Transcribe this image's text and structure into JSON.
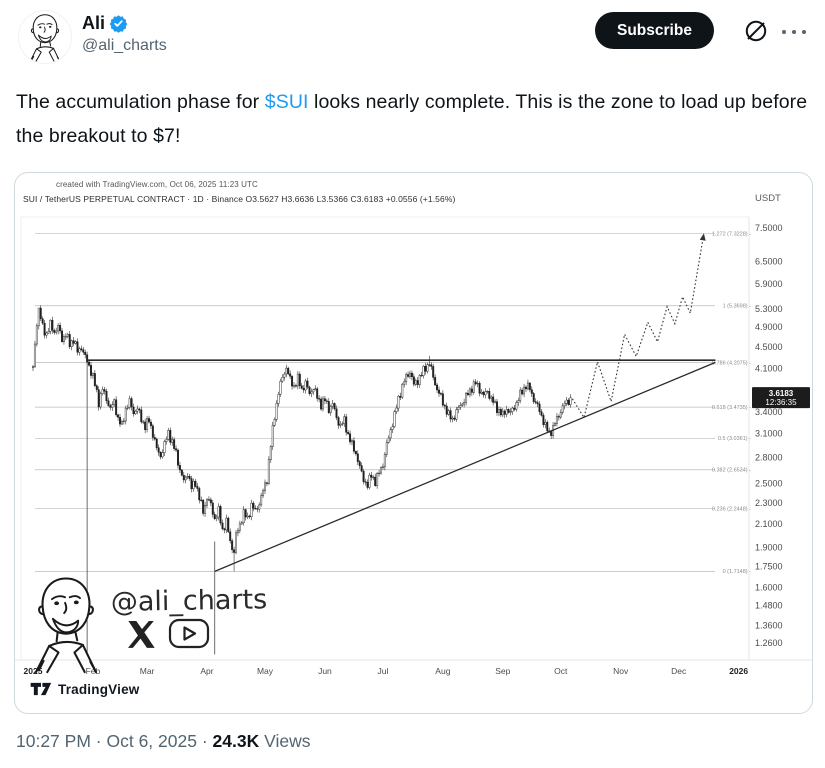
{
  "header": {
    "name": "Ali",
    "handle": "@ali_charts",
    "subscribe_label": "Subscribe",
    "verified": true
  },
  "tweet": {
    "before_link": "The accumulation phase for ",
    "link": "$SUI",
    "after_link": " looks nearly complete. This is the zone",
    "line2": "to load up before the breakout to $7!"
  },
  "chart_data": {
    "type": "candlestick",
    "created_header": "created with TradingView.com, Oct 06, 2025 11:23 UTC",
    "ohlc_header": "SUI / TetherUS PERPETUAL CONTRACT · 1D · Binance  O3.5627  H3.6636  L3.5366  C3.6183  +0.0556 (+1.56%)",
    "y_axis": {
      "currency": "USDT",
      "scale": "log",
      "ticks": [
        "7.5000",
        "6.5000",
        "5.9000",
        "5.3000",
        "4.9000",
        "4.5000",
        "4.1000",
        "3.7000",
        "3.4000",
        "3.1000",
        "2.8000",
        "2.5000",
        "2.3000",
        "2.1000",
        "1.9000",
        "1.7500",
        "1.6000",
        "1.4800",
        "1.3600",
        "1.2600"
      ]
    },
    "x_axis": {
      "labels": [
        {
          "label": "2025",
          "day": 0,
          "bold": true
        },
        {
          "label": "Feb",
          "day": 31
        },
        {
          "label": "Mar",
          "day": 59
        },
        {
          "label": "Apr",
          "day": 90
        },
        {
          "label": "May",
          "day": 120
        },
        {
          "label": "Jun",
          "day": 151
        },
        {
          "label": "Jul",
          "day": 181
        },
        {
          "label": "Aug",
          "day": 212
        },
        {
          "label": "Sep",
          "day": 243
        },
        {
          "label": "Oct",
          "day": 273
        },
        {
          "label": "Nov",
          "day": 304
        },
        {
          "label": "Dec",
          "day": 334
        },
        {
          "label": "2026",
          "day": 365,
          "bold": true
        }
      ]
    },
    "fib_retracement": [
      {
        "ratio": "1.272",
        "price": 7.3228
      },
      {
        "ratio": "1",
        "price": 5.3698
      },
      {
        "ratio": "0.786",
        "price": 4.2075
      },
      {
        "ratio": "0.618",
        "price": 3.4735
      },
      {
        "ratio": "0.5",
        "price": 3.0361
      },
      {
        "ratio": "0.382",
        "price": 2.6534
      },
      {
        "ratio": "0.236",
        "price": 2.2448
      },
      {
        "ratio": "0",
        "price": 1.7148
      }
    ],
    "lines": {
      "resistance": {
        "from_day": 28,
        "to_day": 353,
        "price": 4.25
      },
      "trendline": {
        "from_day": 94,
        "price_from": 1.7148,
        "to_day": 353,
        "price_to": 4.21
      },
      "verticals": [
        {
          "day": 28,
          "price_from": 4.25,
          "price_to": 1.2
        },
        {
          "day": 94,
          "price_from": 1.95,
          "price_to": 1.2
        }
      ]
    },
    "candles": {
      "last_day": 278,
      "waypoints": [
        [
          0,
          4.1
        ],
        [
          1,
          4.55
        ],
        [
          2,
          5.0
        ],
        [
          3,
          5.28
        ],
        [
          5,
          4.9
        ],
        [
          7,
          4.75
        ],
        [
          9,
          4.95
        ],
        [
          11,
          4.8
        ],
        [
          13,
          4.9
        ],
        [
          15,
          4.65
        ],
        [
          17,
          4.75
        ],
        [
          19,
          4.55
        ],
        [
          21,
          4.65
        ],
        [
          23,
          4.4
        ],
        [
          25,
          4.5
        ],
        [
          27,
          4.3
        ],
        [
          29,
          4.15
        ],
        [
          31,
          3.95
        ],
        [
          33,
          3.7
        ],
        [
          34,
          3.55
        ],
        [
          36,
          3.75
        ],
        [
          38,
          3.6
        ],
        [
          40,
          3.45
        ],
        [
          42,
          3.55
        ],
        [
          44,
          3.3
        ],
        [
          46,
          3.2
        ],
        [
          48,
          3.45
        ],
        [
          50,
          3.55
        ],
        [
          52,
          3.4
        ],
        [
          54,
          3.45
        ],
        [
          56,
          3.3
        ],
        [
          58,
          3.2
        ],
        [
          60,
          3.28
        ],
        [
          62,
          3.1
        ],
        [
          64,
          2.9
        ],
        [
          66,
          2.82
        ],
        [
          68,
          2.95
        ],
        [
          70,
          3.12
        ],
        [
          72,
          2.98
        ],
        [
          74,
          2.85
        ],
        [
          76,
          2.65
        ],
        [
          78,
          2.52
        ],
        [
          80,
          2.62
        ],
        [
          82,
          2.45
        ],
        [
          84,
          2.52
        ],
        [
          86,
          2.35
        ],
        [
          88,
          2.22
        ],
        [
          90,
          2.35
        ],
        [
          92,
          2.28
        ],
        [
          94,
          2.15
        ],
        [
          96,
          2.22
        ],
        [
          98,
          2.05
        ],
        [
          100,
          2.12
        ],
        [
          102,
          1.95
        ],
        [
          104,
          1.86
        ],
        [
          105,
          2.0
        ],
        [
          107,
          2.1
        ],
        [
          109,
          2.2
        ],
        [
          111,
          2.15
        ],
        [
          113,
          2.28
        ],
        [
          115,
          2.22
        ],
        [
          117,
          2.3
        ],
        [
          119,
          2.42
        ],
        [
          121,
          2.55
        ],
        [
          123,
          2.95
        ],
        [
          125,
          3.35
        ],
        [
          127,
          3.7
        ],
        [
          129,
          3.95
        ],
        [
          131,
          4.12
        ],
        [
          133,
          3.9
        ],
        [
          135,
          3.8
        ],
        [
          137,
          3.92
        ],
        [
          139,
          3.75
        ],
        [
          141,
          3.85
        ],
        [
          143,
          3.68
        ],
        [
          145,
          3.78
        ],
        [
          147,
          3.62
        ],
        [
          149,
          3.52
        ],
        [
          151,
          3.58
        ],
        [
          153,
          3.45
        ],
        [
          155,
          3.52
        ],
        [
          157,
          3.32
        ],
        [
          159,
          3.2
        ],
        [
          161,
          3.28
        ],
        [
          163,
          3.08
        ],
        [
          165,
          2.95
        ],
        [
          167,
          2.85
        ],
        [
          169,
          2.68
        ],
        [
          171,
          2.55
        ],
        [
          173,
          2.48
        ],
        [
          175,
          2.6
        ],
        [
          177,
          2.52
        ],
        [
          179,
          2.62
        ],
        [
          181,
          2.72
        ],
        [
          183,
          2.95
        ],
        [
          185,
          3.15
        ],
        [
          187,
          3.35
        ],
        [
          189,
          3.6
        ],
        [
          191,
          3.8
        ],
        [
          193,
          3.95
        ],
        [
          195,
          4.05
        ],
        [
          197,
          3.82
        ],
        [
          199,
          3.9
        ],
        [
          201,
          4.0
        ],
        [
          203,
          4.12
        ],
        [
          205,
          4.2
        ],
        [
          207,
          3.95
        ],
        [
          209,
          3.75
        ],
        [
          211,
          3.62
        ],
        [
          213,
          3.48
        ],
        [
          215,
          3.35
        ],
        [
          217,
          3.3
        ],
        [
          219,
          3.4
        ],
        [
          221,
          3.5
        ],
        [
          223,
          3.58
        ],
        [
          225,
          3.68
        ],
        [
          227,
          3.78
        ],
        [
          229,
          3.85
        ],
        [
          231,
          3.75
        ],
        [
          233,
          3.65
        ],
        [
          235,
          3.72
        ],
        [
          237,
          3.6
        ],
        [
          239,
          3.5
        ],
        [
          241,
          3.42
        ],
        [
          243,
          3.35
        ],
        [
          245,
          3.45
        ],
        [
          247,
          3.38
        ],
        [
          249,
          3.48
        ],
        [
          251,
          3.6
        ],
        [
          253,
          3.72
        ],
        [
          255,
          3.82
        ],
        [
          257,
          3.75
        ],
        [
          259,
          3.6
        ],
        [
          261,
          3.48
        ],
        [
          263,
          3.35
        ],
        [
          265,
          3.2
        ],
        [
          267,
          3.1
        ],
        [
          269,
          3.18
        ],
        [
          271,
          3.3
        ],
        [
          273,
          3.42
        ],
        [
          275,
          3.52
        ],
        [
          277,
          3.58
        ],
        [
          278,
          3.62
        ]
      ],
      "forced": {
        "lows": {
          "104": 1.715
        },
        "highs": {
          "3": 5.31,
          "205": 4.33
        },
        "closes": {
          "278": 3.6183
        }
      }
    },
    "projection": {
      "points": [
        [
          279,
          3.6
        ],
        [
          285,
          3.32
        ],
        [
          292,
          4.22
        ],
        [
          299,
          3.56
        ],
        [
          306,
          4.75
        ],
        [
          312,
          4.32
        ],
        [
          318,
          5.0
        ],
        [
          323,
          4.6
        ],
        [
          328,
          5.35
        ],
        [
          332,
          4.97
        ],
        [
          336,
          5.58
        ],
        [
          340,
          5.2
        ],
        [
          347,
          7.33
        ]
      ]
    },
    "last_price": {
      "value": "3.6183",
      "countdown": "12:36:35"
    },
    "watermark": {
      "handle": "@ali_charts"
    },
    "branding": {
      "tradingview": "TradingView"
    }
  },
  "footer": {
    "time": "10:27 PM",
    "separator": "·",
    "date": "Oct 6, 2025",
    "views_count": "24.3K",
    "views_label": "Views"
  },
  "colors": {
    "link_blue": "#1d9bf0",
    "text_dark": "#0f1419",
    "text_gray": "#536471",
    "candle_ink": "#1f1f1f",
    "badge_bg": "#1c1c1c"
  }
}
